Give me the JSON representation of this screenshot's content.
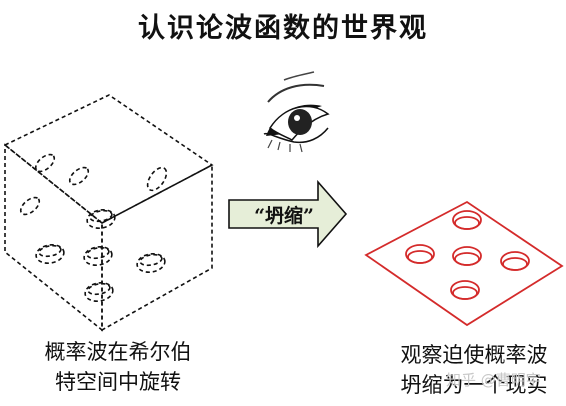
{
  "title": "认识论波函数的世界观",
  "arrow": {
    "label": "“坍缩”"
  },
  "captions": {
    "left": [
      "概率波在希尔伯",
      "特空间中旋转"
    ],
    "right": [
      "观察迫使概率波",
      "坍缩为一个现实"
    ]
  },
  "watermark": "知乎 @曹明宇",
  "colors": {
    "text": "#111111",
    "dice_outline": "#111111",
    "arrow_fill": "#e6eed8",
    "collapsed_face": "#d42b2b"
  },
  "icons": [
    "eye-icon"
  ]
}
